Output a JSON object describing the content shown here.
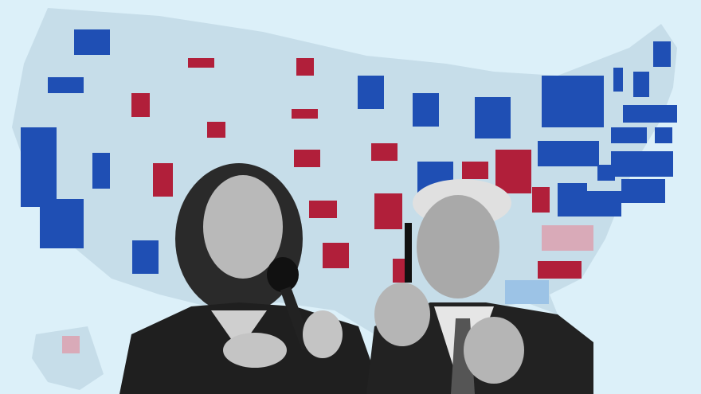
{
  "colors": {
    "background": "#dcf0f9",
    "map_land": "#c6dde9",
    "map_border": "#e6f2f8",
    "democrat_blue": "#1f4fb4",
    "republican_red": "#b11f3a",
    "lean_red": "#d9aab8",
    "lean_blue": "#9cc3e6"
  },
  "figures": {
    "left_person": "woman-with-microphone-photo",
    "right_person": "man-holding-pen-photo"
  }
}
